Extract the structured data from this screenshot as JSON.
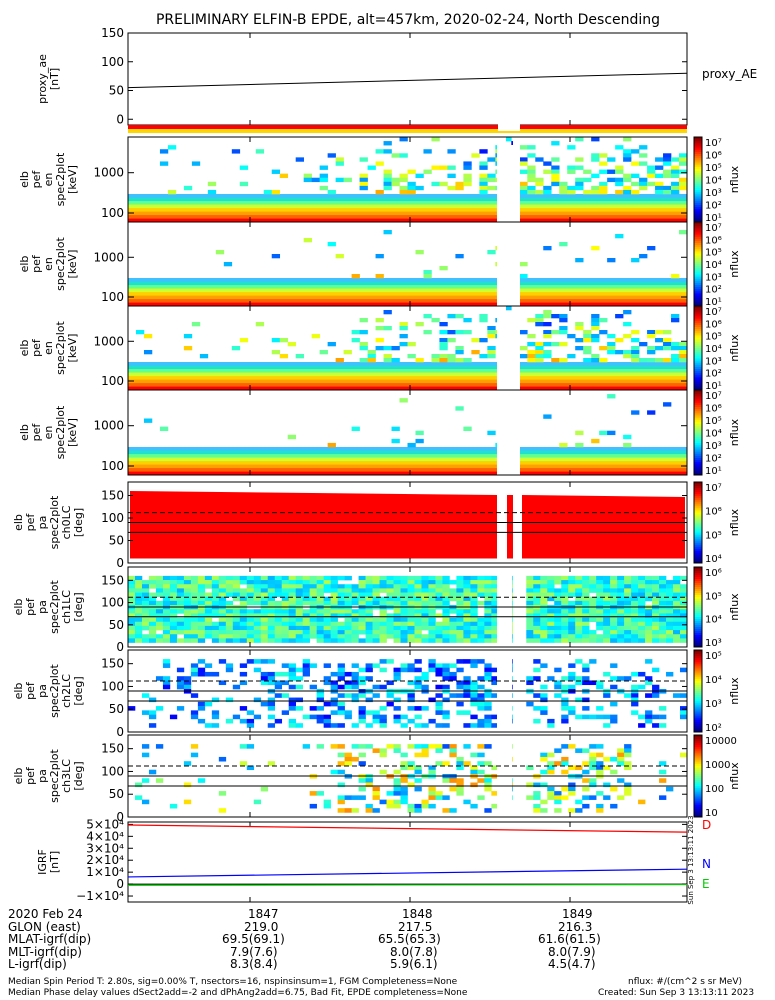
{
  "title": "PRELIMINARY ELFIN-B EPDE, alt=457km, 2020-02-24, North Descending",
  "colors": {
    "accent_red": "#ff0000",
    "grid": "#000000",
    "line_n": "#0000ff",
    "line_e": "#00cc00",
    "line_d": "#ff0000"
  },
  "chart_data": [
    {
      "panel": "proxy_ae",
      "type": "line",
      "ylabel": [
        "proxy_ae",
        "[nT]"
      ],
      "ylim": [
        -10,
        150
      ],
      "yticks": [
        "150",
        "100",
        "50",
        "0"
      ],
      "series": [
        {
          "name": "proxy_AE",
          "x": [
            0,
            1
          ],
          "y": [
            55,
            80
          ]
        }
      ]
    },
    {
      "panel": "spectrogram-energy-1",
      "type": "heatmap",
      "ylabel": [
        "elb",
        "pef",
        "en",
        "spec2plot",
        "[keV]"
      ],
      "yscale": "log",
      "yticks": [
        "1000",
        "100"
      ],
      "colorbar": {
        "label": "nflux",
        "ticks": [
          "10⁷",
          "10⁶",
          "10⁵",
          "10⁴",
          "10³",
          "10²",
          "10¹"
        ]
      }
    },
    {
      "panel": "spectrogram-energy-2",
      "type": "heatmap",
      "ylabel": [
        "elb",
        "pef",
        "en",
        "spec2plot",
        "[keV]"
      ],
      "yscale": "log",
      "yticks": [
        "1000",
        "100"
      ],
      "colorbar": {
        "label": "nflux",
        "ticks": [
          "10⁷",
          "10⁶",
          "10⁵",
          "10⁴",
          "10³",
          "10²",
          "10¹"
        ]
      }
    },
    {
      "panel": "spectrogram-energy-3",
      "type": "heatmap",
      "ylabel": [
        "elb",
        "pef",
        "en",
        "spec2plot",
        "[keV]"
      ],
      "yscale": "log",
      "yticks": [
        "1000",
        "100"
      ],
      "colorbar": {
        "label": "nflux",
        "ticks": [
          "10⁷",
          "10⁶",
          "10⁵",
          "10⁴",
          "10³",
          "10²",
          "10¹"
        ]
      }
    },
    {
      "panel": "spectrogram-energy-4",
      "type": "heatmap",
      "ylabel": [
        "elb",
        "pef",
        "en",
        "spec2plot",
        "[keV]"
      ],
      "yscale": "log",
      "yticks": [
        "1000",
        "100"
      ],
      "colorbar": {
        "label": "nflux",
        "ticks": [
          "10⁷",
          "10⁶",
          "10⁵",
          "10⁴",
          "10³",
          "10²",
          "10¹"
        ]
      }
    },
    {
      "panel": "pitch-angle-ch0",
      "type": "heatmap",
      "ylabel": [
        "elb",
        "pef",
        "pa",
        "spec2plot",
        "ch0LC",
        "[deg]"
      ],
      "ylim": [
        0,
        180
      ],
      "yticks": [
        "150",
        "100",
        "50",
        "0"
      ],
      "colorbar": {
        "label": "nflux",
        "ticks": [
          "10⁷",
          "10⁶",
          "10⁵",
          "10⁴"
        ]
      }
    },
    {
      "panel": "pitch-angle-ch1",
      "type": "heatmap",
      "ylabel": [
        "elb",
        "pef",
        "pa",
        "spec2plot",
        "ch1LC",
        "[deg]"
      ],
      "ylim": [
        0,
        180
      ],
      "yticks": [
        "150",
        "100",
        "50",
        "0"
      ],
      "colorbar": {
        "label": "nflux",
        "ticks": [
          "10⁶",
          "10⁵",
          "10⁴",
          "10³"
        ]
      }
    },
    {
      "panel": "pitch-angle-ch2",
      "type": "heatmap",
      "ylabel": [
        "elb",
        "pef",
        "pa",
        "spec2plot",
        "ch2LC",
        "[deg]"
      ],
      "ylim": [
        0,
        180
      ],
      "yticks": [
        "150",
        "100",
        "50",
        "0"
      ],
      "colorbar": {
        "label": "nflux",
        "ticks": [
          "10⁵",
          "10⁴",
          "10³",
          "10²"
        ]
      }
    },
    {
      "panel": "pitch-angle-ch3",
      "type": "heatmap",
      "ylabel": [
        "elb",
        "pef",
        "pa",
        "spec2plot",
        "ch3LC",
        "[deg]"
      ],
      "ylim": [
        0,
        180
      ],
      "yticks": [
        "150",
        "100",
        "50",
        "0"
      ],
      "colorbar": {
        "label": "nflux",
        "ticks": [
          "10000",
          "1000",
          "100",
          "10"
        ]
      }
    },
    {
      "panel": "igrf",
      "type": "line",
      "ylabel": [
        "IGRF",
        "[nT]"
      ],
      "ylim": [
        -15000,
        52000
      ],
      "yticks": [
        "5×10⁴",
        "4×10⁴",
        "3×10⁴",
        "2×10⁴",
        "1×10⁴",
        "0",
        "−1×10⁴"
      ],
      "series": [
        {
          "name": "D",
          "x": [
            0,
            1
          ],
          "y": [
            49500,
            43500
          ]
        },
        {
          "name": "N",
          "x": [
            0,
            1
          ],
          "y": [
            6000,
            12500
          ]
        },
        {
          "name": "E",
          "x": [
            0,
            1
          ],
          "y": [
            -1000,
            -400
          ]
        }
      ]
    }
  ],
  "footer": {
    "date": "2020 Feb 24",
    "time_ticks": [
      "1847",
      "1848",
      "1849"
    ],
    "rows": [
      {
        "label": "GLON (east)",
        "values": [
          "219.0",
          "217.5",
          "216.3"
        ]
      },
      {
        "label": "MLAT-igrf(dip)",
        "values": [
          "69.5(69.1)",
          "65.5(65.3)",
          "61.6(61.5)"
        ]
      },
      {
        "label": "MLT-igrf(dip)",
        "values": [
          "7.9(7.6)",
          "8.0(7.8)",
          "8.0(7.9)"
        ]
      },
      {
        "label": "L-igrf(dip)",
        "values": [
          "8.3(8.4)",
          "5.9(6.1)",
          "4.5(4.7)"
        ]
      }
    ],
    "note_left_1": "Median Spin Period T: 2.80s, sig=0.00% T, nsectors=16, nspinsinsum=1, FGM Completeness=None",
    "note_left_2": "Median Phase delay values dSect2add=-2 and dPhAng2add=6.75, Bad Fit, EPDE completeness=None",
    "note_right_1": "nflux: #/(cm^2 s sr MeV)",
    "note_right_2": "Created: Sun Sep  3 13:13:11 2023",
    "side_stamp": "Sun Sep  3 13:13:11 2023"
  }
}
